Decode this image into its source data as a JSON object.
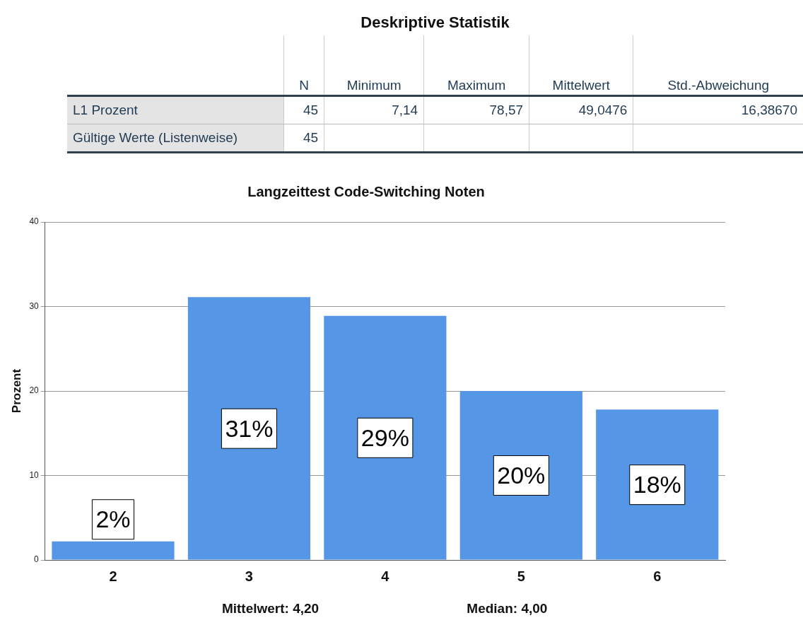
{
  "chart_data": [
    {
      "type": "other",
      "title": "Deskriptive Statistik",
      "annotations": [
        "N",
        "Minimum",
        "Maximum",
        "Mittelwert",
        "Std.-Abweichung",
        "L1 Prozent",
        "45",
        "7,14",
        "78,57",
        "49,0476",
        "16,38670",
        "Gültige Werte (Listenweise)",
        "45"
      ]
    },
    {
      "type": "bar",
      "title": "Langzeittest Code-Switching Noten",
      "ylabel": "Prozent",
      "categories": [
        "2",
        "3",
        "4",
        "5",
        "6"
      ],
      "values": [
        2.2,
        31.1,
        28.9,
        20,
        17.8
      ],
      "value_labels": [
        "2%",
        "31%",
        "29%",
        "20%",
        "18%"
      ],
      "color": "#5596e6",
      "ylim": [
        0,
        40
      ],
      "yticks": [
        0,
        10,
        20,
        30,
        40
      ],
      "grid": "y",
      "legend": false,
      "annotations": [
        "Mittelwert: 4,20",
        "Median: 4,00"
      ]
    }
  ]
}
